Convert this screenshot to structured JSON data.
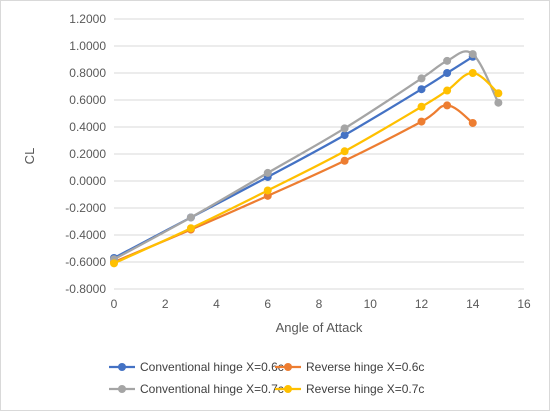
{
  "chart_data": {
    "type": "line",
    "title": "",
    "xlabel": "Angle of Attack",
    "ylabel": "CL",
    "xlim": [
      0,
      16
    ],
    "ylim": [
      -0.8,
      1.2
    ],
    "xticks": [
      0,
      2,
      4,
      6,
      8,
      10,
      12,
      14,
      16
    ],
    "yticks": [
      -0.8,
      -0.6,
      -0.4,
      -0.2,
      0.0,
      0.2,
      0.4,
      0.6,
      0.8,
      1.0,
      1.2
    ],
    "ytick_labels": [
      "-0.8000",
      "-0.6000",
      "-0.4000",
      "-0.2000",
      "0.0000",
      "0.2000",
      "0.4000",
      "0.6000",
      "0.8000",
      "1.0000",
      "1.2000"
    ],
    "grid": "horizontal",
    "legend_position": "bottom",
    "series": [
      {
        "name": "Conventional hinge X=0.6c",
        "color": "#4472C4",
        "x": [
          0,
          3,
          6,
          9,
          12,
          13,
          14
        ],
        "y": [
          -0.57,
          -0.27,
          0.03,
          0.34,
          0.68,
          0.8,
          0.92
        ]
      },
      {
        "name": "Reverse hinge X=0.6c",
        "color": "#ED7D31",
        "x": [
          0,
          3,
          6,
          9,
          12,
          13,
          14
        ],
        "y": [
          -0.6,
          -0.36,
          -0.11,
          0.15,
          0.44,
          0.56,
          0.43
        ]
      },
      {
        "name": "Conventional hinge X=0.7c",
        "color": "#A5A5A5",
        "x": [
          0,
          3,
          6,
          9,
          12,
          13,
          14,
          15
        ],
        "y": [
          -0.58,
          -0.27,
          0.06,
          0.39,
          0.76,
          0.89,
          0.94,
          0.58
        ]
      },
      {
        "name": "Reverse hinge X=0.7c",
        "color": "#FFC000",
        "x": [
          0,
          3,
          6,
          9,
          12,
          13,
          14,
          15
        ],
        "y": [
          -0.61,
          -0.35,
          -0.07,
          0.22,
          0.55,
          0.67,
          0.8,
          0.65
        ]
      }
    ]
  }
}
